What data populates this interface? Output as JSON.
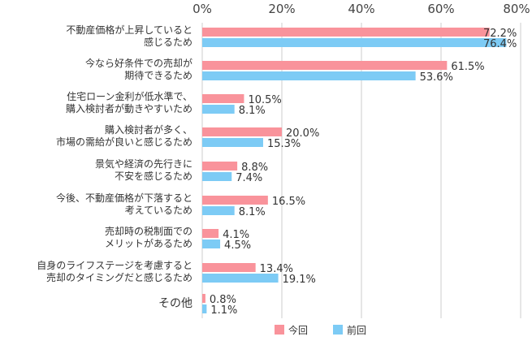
{
  "chart_data": {
    "type": "bar",
    "orientation": "horizontal",
    "categories": [
      [
        "不動産価格が上昇していると",
        "感じるため"
      ],
      [
        "今なら好条件での売却が",
        "期待できるため"
      ],
      [
        "住宅ローン金利が低水準で、",
        "購入検討者が動きやすいため"
      ],
      [
        "購入検討者が多く、",
        "市場の需給が良いと感じるため"
      ],
      [
        "景気や経済の先行きに",
        "不安を感じるため"
      ],
      [
        "今後、不動産価格が下落すると",
        "考えているため"
      ],
      [
        "売却時の税制面での",
        "メリットがあるため"
      ],
      [
        "自身のライフステージを考慮すると",
        "売却のタイミングだと感じるため"
      ],
      [
        "その他"
      ]
    ],
    "series": [
      {
        "name": "今回",
        "color": "#f9939b",
        "values": [
          72.2,
          61.5,
          10.5,
          20.0,
          8.8,
          16.5,
          4.1,
          13.4,
          0.8
        ],
        "labels": [
          "72.2%",
          "61.5%",
          "10.5%",
          "20.0%",
          "8.8%",
          "16.5%",
          "4.1%",
          "13.4%",
          "0.8%"
        ]
      },
      {
        "name": "前回",
        "color": "#7dcbf5",
        "values": [
          76.4,
          53.6,
          8.1,
          15.3,
          7.4,
          8.1,
          4.5,
          19.1,
          1.1
        ],
        "labels": [
          "76.4%",
          "53.6%",
          "8.1%",
          "15.3%",
          "7.4%",
          "8.1%",
          "4.5%",
          "19.1%",
          "1.1%"
        ]
      }
    ],
    "xlim": [
      0,
      80
    ],
    "xticks": [
      "0%",
      "20%",
      "40%",
      "60%",
      "80%"
    ],
    "grid": true,
    "legend": "bottom"
  }
}
